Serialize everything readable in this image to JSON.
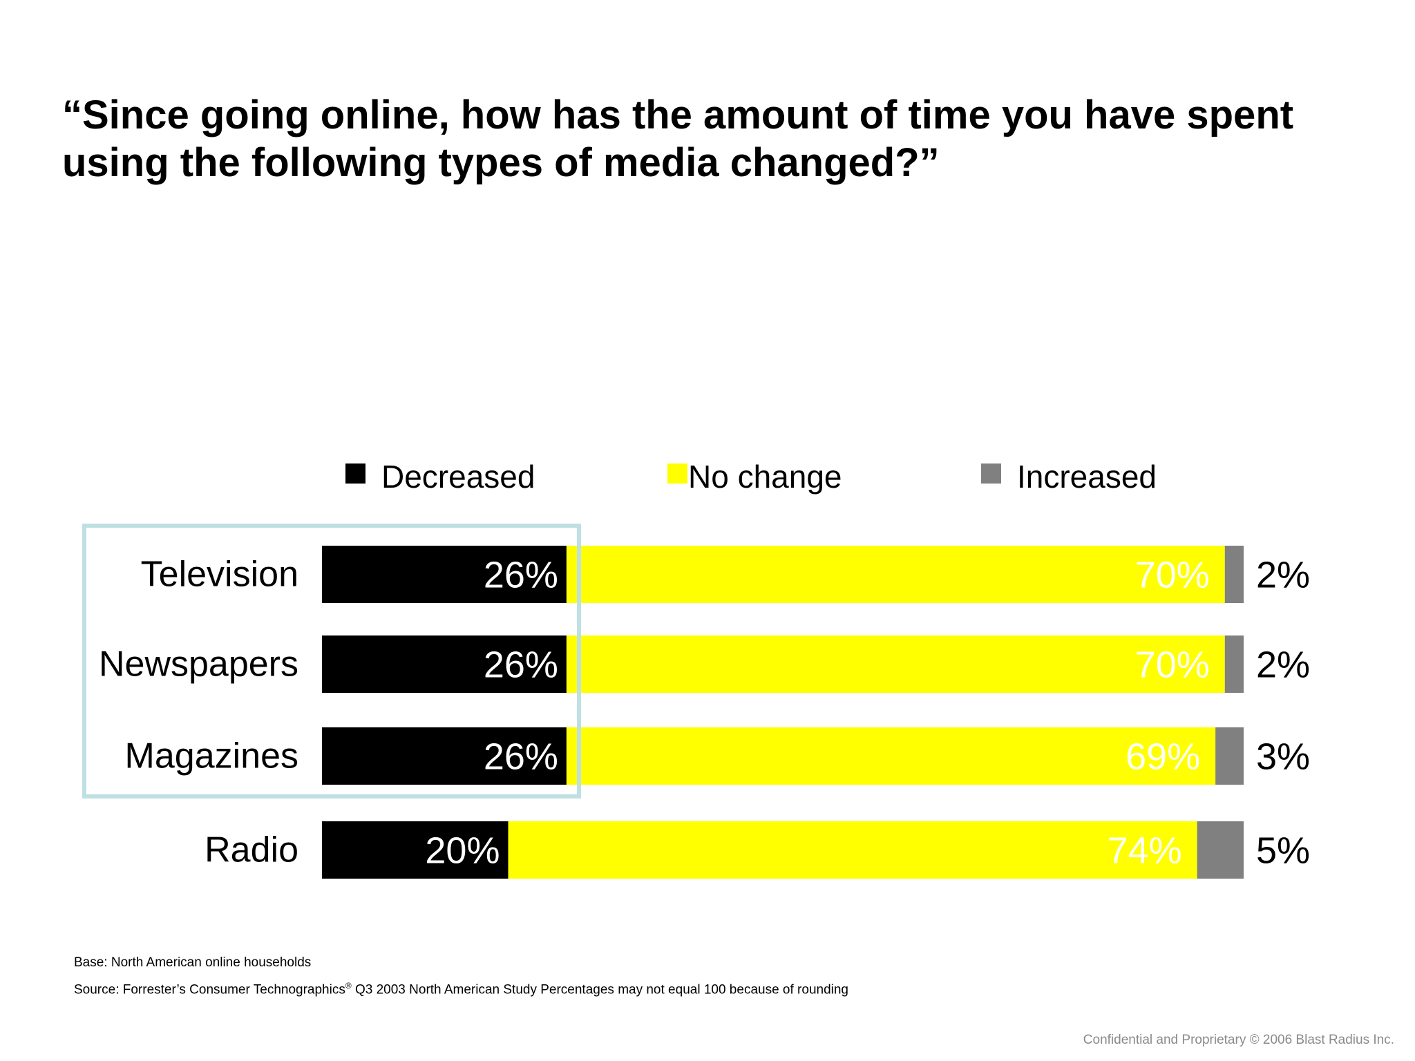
{
  "title": "“Since going online, how has the amount of time you have spent using the following types of media changed?”",
  "colors": {
    "decreased": "#000000",
    "no_change": "#ffff00",
    "increased": "#808080",
    "highlight": "#bfe0e3"
  },
  "chart_data": {
    "type": "bar",
    "orientation": "horizontal",
    "stacked": true,
    "categories": [
      "Television",
      "Newspapers",
      "Magazines",
      "Radio"
    ],
    "series": [
      {
        "name": "Decreased",
        "values": [
          26,
          26,
          26,
          20
        ],
        "labels": [
          "26%",
          "26%",
          "26%",
          "20%"
        ]
      },
      {
        "name": "No change",
        "values": [
          70,
          70,
          69,
          74
        ],
        "labels": [
          "70%",
          "70%",
          "69%",
          "74%"
        ]
      },
      {
        "name": "Increased",
        "values": [
          2,
          2,
          3,
          5
        ],
        "labels": [
          "2%",
          "2%",
          "3%",
          "5%"
        ]
      }
    ],
    "legend_position": "top",
    "highlighted_categories": [
      "Television",
      "Newspapers",
      "Magazines"
    ]
  },
  "footnotes": {
    "base": "Base: North American online households",
    "source_prefix": "Source: Forrester’s Consumer Technographics",
    "source_mark": "®",
    "source_suffix": " Q3 2003 North American Study Percentages may not equal 100 because of rounding"
  },
  "copyright": "Confidential and Proprietary © 2006 Blast Radius Inc."
}
